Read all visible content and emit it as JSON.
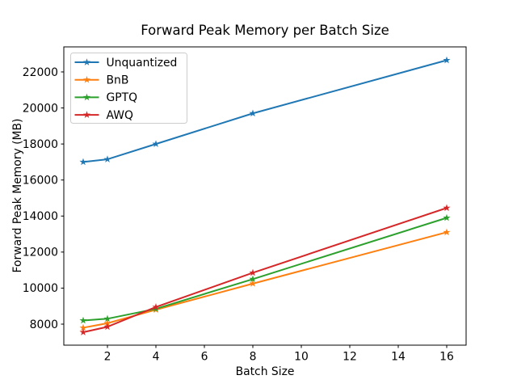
{
  "figure": {
    "title": "Forward Peak Memory per Batch Size",
    "xlabel": "Batch Size",
    "ylabel": "Forward Peak Memory (MB)"
  },
  "chart_data": {
    "type": "line",
    "title": "Forward Peak Memory per Batch Size",
    "xlabel": "Batch Size",
    "ylabel": "Forward Peak Memory (MB)",
    "x": [
      1,
      2,
      4,
      8,
      16
    ],
    "series": [
      {
        "name": "Unquantized",
        "color": "#1f77b4",
        "marker": "star",
        "values": [
          17000,
          17150,
          18000,
          19700,
          22650
        ]
      },
      {
        "name": "BnB",
        "color": "#ff7f0e",
        "marker": "star",
        "values": [
          7800,
          8050,
          8800,
          10250,
          13100
        ]
      },
      {
        "name": "GPTQ",
        "color": "#2ca02c",
        "marker": "star",
        "values": [
          8200,
          8300,
          8850,
          10500,
          13900
        ]
      },
      {
        "name": "AWQ",
        "color": "#d62728",
        "marker": "star",
        "values": [
          7550,
          7850,
          8950,
          10850,
          14450
        ]
      }
    ],
    "x_ticks": [
      2,
      4,
      6,
      8,
      10,
      12,
      14,
      16
    ],
    "y_ticks": [
      8000,
      10000,
      12000,
      14000,
      16000,
      18000,
      20000,
      22000
    ],
    "xlim": [
      0.2,
      16.8
    ],
    "ylim": [
      6833,
      23390
    ],
    "grid": false,
    "legend_position": "upper left",
    "legend_border_color": "#cccccc",
    "axis_color": "#000000",
    "background": "#ffffff"
  }
}
